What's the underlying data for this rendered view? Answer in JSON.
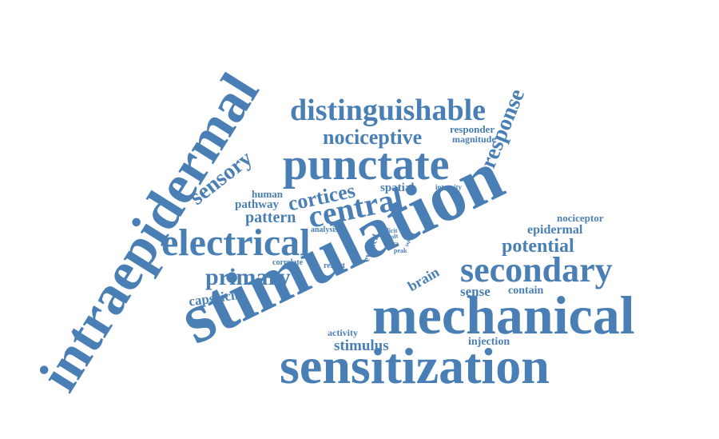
{
  "colors": {
    "word": "#4a7fb5",
    "background": "#ffffff"
  },
  "words": [
    "intraepidermal",
    "stimulation",
    "mechanical",
    "sensitization",
    "punctate",
    "electrical",
    "secondary",
    "distinguishable",
    "central",
    "nociceptive",
    "primary",
    "response",
    "potential",
    "sensory",
    "cortices",
    "pattern",
    "stimulus",
    "capsaicin",
    "brain",
    "sense",
    "epidermal",
    "pathway",
    "human",
    "spatial",
    "contain",
    "nociceptor",
    "injection",
    "activity",
    "responder",
    "magnitude",
    "evoked",
    "correlate",
    "reflect",
    "analysis",
    "intensity",
    "elicit",
    "result",
    "intra",
    "peak",
    "input"
  ]
}
